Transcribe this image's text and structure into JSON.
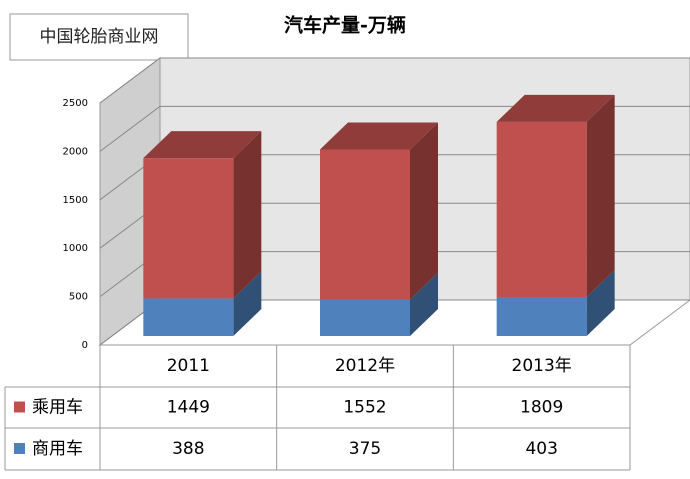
{
  "chart_data": {
    "type": "bar3d_stacked",
    "title": "汽车产量-万辆",
    "watermark": "中国轮胎商业网",
    "categories": [
      "2011",
      "2012年",
      "2013年"
    ],
    "series": [
      {
        "name": "乘用车",
        "color": "#c0504d",
        "values": [
          1449,
          1552,
          1809
        ]
      },
      {
        "name": "商用车",
        "color": "#4f81bd",
        "values": [
          388,
          375,
          403
        ]
      }
    ],
    "ylim": [
      0,
      2500
    ],
    "yticks": [
      0,
      500,
      1000,
      1500,
      2000,
      2500
    ],
    "grid": true,
    "data_table": true
  }
}
